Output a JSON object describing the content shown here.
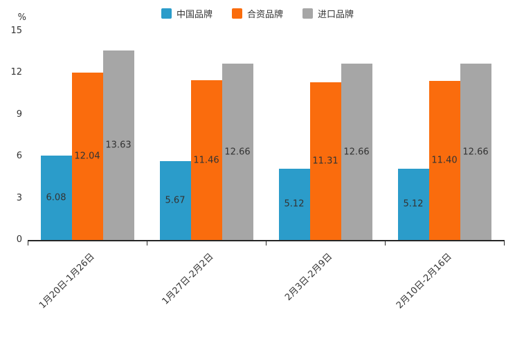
{
  "colors": {
    "axis": "#262626",
    "text": "#333333",
    "china_brand_blue": "#2b9cca",
    "joint_venture_orange": "#fa6c0d",
    "import_gray": "#a6a6a6"
  },
  "chart_data": {
    "type": "bar",
    "title": "",
    "ylabel": "%",
    "xlabel": "",
    "ylim": [
      0,
      15
    ],
    "yticks": [
      0,
      3,
      6,
      9,
      12,
      15
    ],
    "grid": false,
    "legend_position": "top",
    "categories": [
      "1月20日-1月26日",
      "1月27日-2月2日",
      "2月3日-2月9日",
      "2月10日-2月16日"
    ],
    "series": [
      {
        "name": "中国品牌",
        "color": "#2b9cca",
        "values": [
          6.08,
          5.67,
          5.12,
          5.12
        ],
        "labels": [
          "6.08",
          "5.67",
          "5.12",
          "5.12"
        ]
      },
      {
        "name": "合资品牌",
        "color": "#fa6c0d",
        "values": [
          12.04,
          11.46,
          11.31,
          11.4
        ],
        "labels": [
          "12.04",
          "11.46",
          "11.31",
          "11.40"
        ]
      },
      {
        "name": "进口品牌",
        "color": "#a6a6a6",
        "values": [
          13.63,
          12.66,
          12.66,
          12.66
        ],
        "labels": [
          "13.63",
          "12.66",
          "12.66",
          "12.66"
        ]
      }
    ]
  }
}
